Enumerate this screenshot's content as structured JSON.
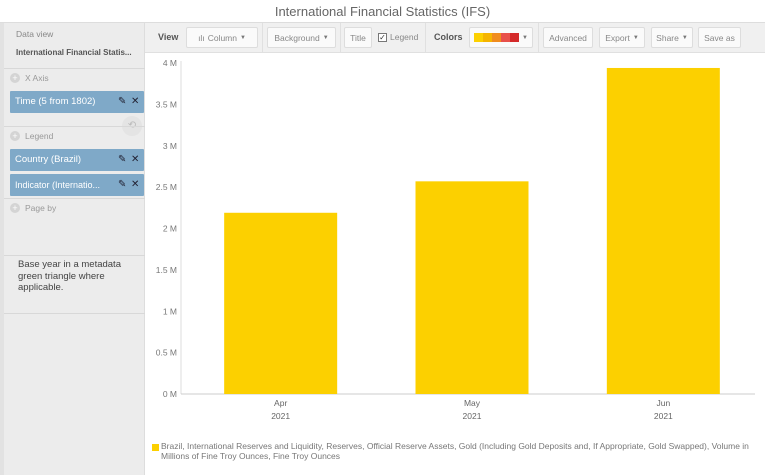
{
  "window": {
    "title": "International Financial Statistics (IFS)"
  },
  "sidebar": {
    "data_view_label": "Data view",
    "data_view_title": "International Financial Statis...",
    "x_axis_label": "X Axis",
    "x_axis_items": [
      {
        "label": "Time (5 from 1802)"
      }
    ],
    "legend_label": "Legend",
    "legend_items": [
      {
        "label": "Country (Brazil)"
      },
      {
        "label": "Indicator (Internatio..."
      }
    ],
    "page_by_label": "Page by",
    "note": "Base year in a metadata green triangle where applicable."
  },
  "toolbar": {
    "view_label": "View",
    "chart_type": "Column",
    "background": "Background",
    "title": "Title",
    "legend": "Legend",
    "legend_checked": true,
    "colors_label": "Colors",
    "palette": [
      "#fcd000",
      "#f5b400",
      "#f08c1e",
      "#e8504a",
      "#d42a2a"
    ],
    "advanced": "Advanced",
    "export": "Export",
    "share": "Share",
    "save_as": "Save as"
  },
  "chart_data": {
    "type": "bar",
    "categories": [
      "Apr 2021",
      "May 2021",
      "Jun 2021"
    ],
    "category_labels": [
      [
        "Apr",
        "2021"
      ],
      [
        "May",
        "2021"
      ],
      [
        "Jun",
        "2021"
      ]
    ],
    "series": [
      {
        "name": "Brazil, International Reserves and Liquidity, Reserves, Official Reserve Assets, Gold (Including Gold Deposits and, If Appropriate, Gold Swapped), Volume in Millions of Fine Troy Ounces, Fine Troy Ounces",
        "values": [
          2190000,
          2570000,
          3940000
        ],
        "color": "#fcd000"
      }
    ],
    "ylim": [
      0,
      4000000
    ],
    "yticks": [
      "0 M",
      "0.5 M",
      "1 M",
      "1.5 M",
      "2 M",
      "2.5 M",
      "3 M",
      "3.5 M",
      "4 M"
    ],
    "grid": false,
    "legend_position": "bottom"
  }
}
